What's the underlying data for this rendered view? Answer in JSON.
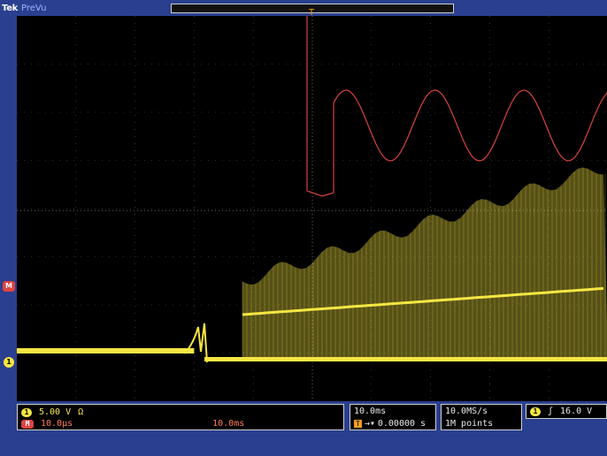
{
  "app": {
    "brand": "Tek",
    "mode": "PreVu"
  },
  "markers": {
    "ch1": "1",
    "math": "M"
  },
  "trigger_marker": "T",
  "readouts": {
    "ch1_scale": "5.00 V",
    "ch1_coupling": "Ω",
    "math_scale": "10.0µs",
    "math_time": "10.0ms",
    "timebase": "10.0ms",
    "trigger_delay": "0.00000 s",
    "trigger_delay_icon": "T",
    "sample_rate": "10.0MS/s",
    "record_length": "1M points",
    "trigger_source": "1",
    "trigger_slope": "rising-edge-icon",
    "trigger_slope_glyph": "ʃ",
    "trigger_level": "16.0 V"
  },
  "colors": {
    "ch1": "#f5e642",
    "math": "#d9443a",
    "trigger": "#f0a020",
    "frame": "#2a3f8f"
  }
}
